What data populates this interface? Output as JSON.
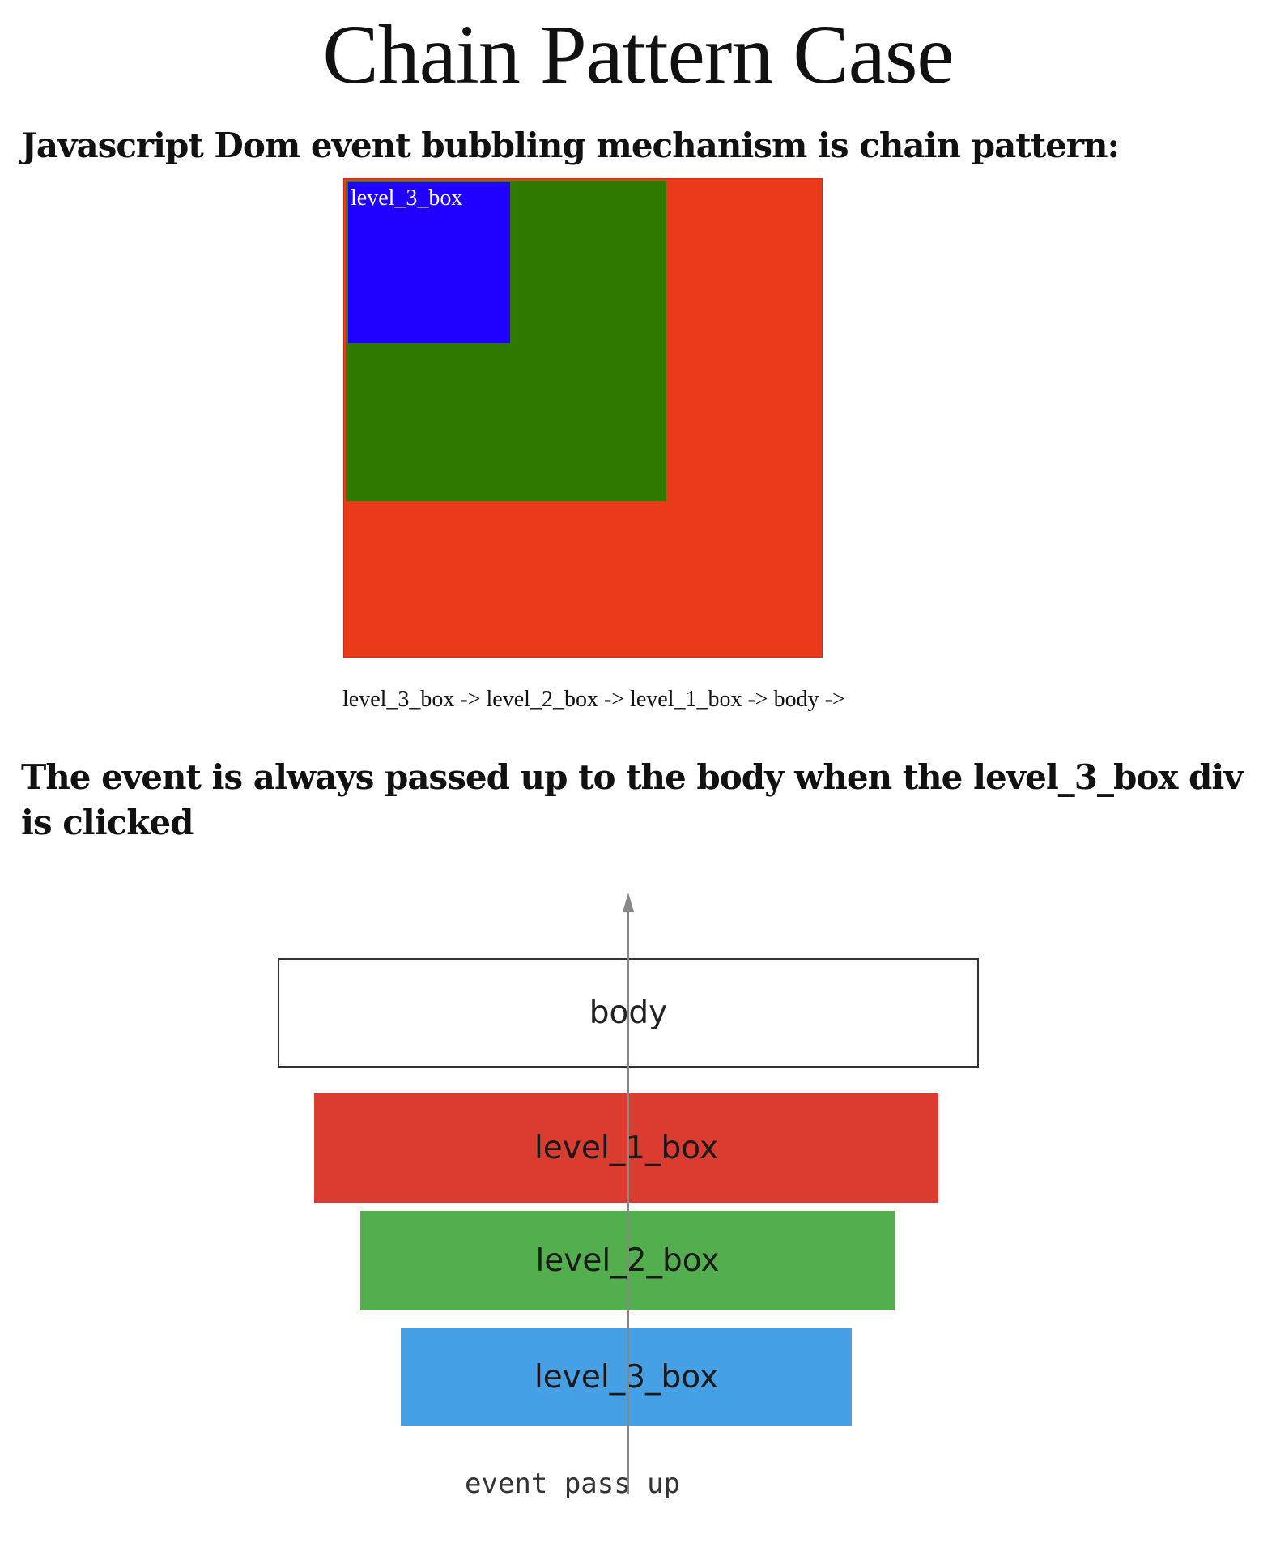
{
  "page": {
    "title": "Chain Pattern Case",
    "heading_1": "Javascript Dom event bubbling mechanism is chain pattern:",
    "heading_2": "The event is always passed up to the body when the level_3_box div is clicked"
  },
  "nested_demo": {
    "level_3_label": "level_3_box",
    "chain_text": "level_3_box -> level_2_box -> level_1_box -> body ->",
    "colors": {
      "level_1": "#ea3a1a",
      "level_2": "#2f7a00",
      "level_3": "#2000ff"
    }
  },
  "diagram": {
    "boxes": {
      "body": "body",
      "level_1": "level_1_box",
      "level_2": "level_2_box",
      "level_3": "level_3_box"
    },
    "event_label": "event pass up",
    "colors": {
      "body": "#ffffff",
      "level_1": "#dc3b30",
      "level_2": "#53af4e",
      "level_3": "#46a0e6",
      "arrow": "#888888"
    }
  }
}
